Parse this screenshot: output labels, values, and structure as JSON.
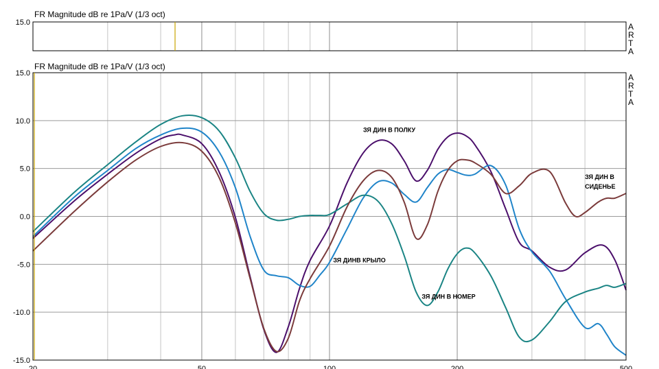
{
  "chart_data": [
    {
      "type": "line",
      "title": "FR Magnitude dB re 1Pa/V (1/3 oct)",
      "xscale": "log",
      "xlim": [
        20,
        500
      ],
      "ylim": [
        -15,
        15
      ],
      "yticks": [
        "15.0"
      ],
      "brand": [
        "A",
        "R",
        "T",
        "A"
      ],
      "grid": true,
      "series": []
    },
    {
      "type": "line",
      "title": "FR Magnitude dB re 1Pa/V (1/3 oct)",
      "xscale": "log",
      "xlim": [
        20,
        500
      ],
      "ylim": [
        -15,
        15
      ],
      "xticks": [
        "20",
        "50",
        "100",
        "200",
        "500"
      ],
      "yticks": [
        "15.0",
        "10.0",
        "5.0",
        "0.0",
        "-5.0",
        "-10.0",
        "-15.0"
      ],
      "grid": true,
      "brand": [
        "A",
        "R",
        "T",
        "A"
      ],
      "annotations": [
        {
          "text": "ЗЯ ДИН В ПОЛКУ",
          "x": 120,
          "y": 8.8
        },
        {
          "text": "ЗЯ ДИН В",
          "x": 400,
          "y": 3.9
        },
        {
          "text": "СИДЕНЬЕ",
          "x": 400,
          "y": 2.9
        },
        {
          "text": "ЗЯ ДИНВ КРЫЛО",
          "x": 102,
          "y": -4.8
        },
        {
          "text": "ЗЯ ДИН В НОМЕР",
          "x": 165,
          "y": -8.6
        }
      ],
      "series": [
        {
          "color": "#4b0f6b",
          "x": [
            20,
            25,
            30,
            35,
            40,
            43,
            45,
            50,
            55,
            60,
            65,
            70,
            75,
            80,
            85,
            90,
            100,
            110,
            120,
            130,
            140,
            150,
            160,
            170,
            180,
            190,
            200,
            210,
            220,
            240,
            260,
            280,
            300,
            330,
            360,
            400,
            440,
            470,
            500
          ],
          "y": [
            -2.3,
            1.6,
            4.4,
            6.6,
            8.1,
            8.5,
            8.5,
            7.6,
            4.6,
            -0.1,
            -6.3,
            -11.8,
            -14.2,
            -11.5,
            -7.5,
            -4.6,
            -1.0,
            3.5,
            6.6,
            7.9,
            7.6,
            5.8,
            3.7,
            4.8,
            7.0,
            8.3,
            8.7,
            8.4,
            7.5,
            4.7,
            0.8,
            -2.7,
            -3.6,
            -5.3,
            -5.6,
            -3.8,
            -3.0,
            -4.5,
            -7.7
          ]
        },
        {
          "color": "#1f84c9",
          "x": [
            20,
            25,
            30,
            35,
            40,
            45,
            50,
            55,
            60,
            65,
            70,
            75,
            80,
            85,
            90,
            95,
            100,
            110,
            120,
            130,
            140,
            150,
            160,
            170,
            180,
            190,
            200,
            210,
            220,
            240,
            260,
            280,
            300,
            330,
            360,
            400,
            430,
            450,
            470,
            500
          ],
          "y": [
            -2.1,
            2.0,
            4.8,
            7.1,
            8.5,
            9.2,
            8.8,
            6.7,
            3.0,
            -2.1,
            -5.6,
            -6.2,
            -6.4,
            -7.2,
            -7.3,
            -6.1,
            -4.8,
            -1.3,
            1.9,
            3.6,
            3.5,
            2.3,
            1.5,
            3.0,
            4.4,
            4.9,
            4.6,
            4.3,
            4.4,
            5.3,
            3.3,
            -1.3,
            -3.7,
            -5.7,
            -8.6,
            -11.6,
            -11.2,
            -12.3,
            -13.6,
            -14.5
          ]
        },
        {
          "color": "#1a8484",
          "x": [
            20,
            25,
            30,
            35,
            40,
            45,
            50,
            55,
            60,
            65,
            70,
            75,
            80,
            85,
            90,
            95,
            100,
            110,
            120,
            130,
            140,
            150,
            160,
            170,
            180,
            190,
            200,
            210,
            220,
            240,
            260,
            280,
            300,
            330,
            360,
            400,
            430,
            450,
            470,
            500
          ],
          "y": [
            -1.6,
            2.5,
            5.4,
            7.8,
            9.6,
            10.5,
            10.3,
            8.9,
            6.1,
            2.6,
            0.3,
            -0.4,
            -0.3,
            0.0,
            0.1,
            0.1,
            0.2,
            1.3,
            2.2,
            1.6,
            -0.7,
            -4.1,
            -7.9,
            -9.3,
            -7.9,
            -5.5,
            -3.9,
            -3.3,
            -3.8,
            -6.2,
            -9.5,
            -12.6,
            -12.9,
            -11.0,
            -8.9,
            -7.9,
            -7.5,
            -7.2,
            -7.4,
            -7.0
          ]
        },
        {
          "color": "#7b3b3b",
          "x": [
            20,
            25,
            30,
            35,
            40,
            45,
            50,
            55,
            60,
            65,
            70,
            75,
            80,
            85,
            90,
            100,
            110,
            120,
            130,
            140,
            150,
            160,
            170,
            180,
            190,
            200,
            210,
            220,
            240,
            260,
            280,
            300,
            330,
            360,
            380,
            400,
            430,
            450,
            470,
            500
          ],
          "y": [
            -3.6,
            0.5,
            3.6,
            5.9,
            7.3,
            7.7,
            6.8,
            4.0,
            -0.7,
            -6.5,
            -11.7,
            -14.1,
            -12.7,
            -8.8,
            -6.5,
            -3.1,
            1.0,
            3.7,
            4.8,
            4.1,
            1.5,
            -2.3,
            -0.9,
            2.6,
            4.8,
            5.8,
            5.9,
            5.6,
            4.4,
            2.4,
            3.2,
            4.5,
            4.7,
            1.4,
            0.0,
            0.4,
            1.5,
            1.9,
            1.9,
            2.4
          ]
        }
      ]
    }
  ]
}
